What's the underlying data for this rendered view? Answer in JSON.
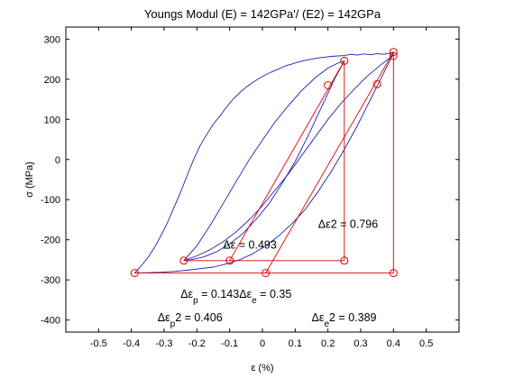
{
  "chart_data": {
    "type": "line",
    "title": "Youngs Modul (E) = 142GPa'/ (E2) = 142GPa",
    "xlabel": "ε (%)",
    "ylabel": "σ (MPa)",
    "xlim": [
      -0.6,
      0.6
    ],
    "ylim": [
      -430,
      330
    ],
    "x_ticks": [
      -0.5,
      -0.4,
      -0.3,
      -0.2,
      -0.1,
      0,
      0.1,
      0.2,
      0.3,
      0.4,
      0.5
    ],
    "y_ticks": [
      -400,
      -300,
      -200,
      -100,
      0,
      100,
      200,
      300
    ],
    "grid": false,
    "colors": {
      "curve": "#2020b0",
      "construction": "#e00000",
      "axes": "#000000"
    },
    "series": [
      {
        "x": [
          -0.39,
          -0.37,
          -0.35,
          -0.33,
          -0.31,
          -0.29,
          -0.27,
          -0.25,
          -0.23,
          -0.21,
          -0.19,
          -0.17,
          -0.15,
          -0.13,
          -0.11,
          -0.09,
          -0.07,
          -0.05,
          -0.03,
          -0.01,
          0.01,
          0.03,
          0.05,
          0.07,
          0.09,
          0.11,
          0.13,
          0.15,
          0.17,
          0.19,
          0.21,
          0.23,
          0.25,
          0.27,
          0.29,
          0.31,
          0.33,
          0.35,
          0.37,
          0.39,
          0.4
        ],
        "y": [
          -283,
          -265,
          -245,
          -220,
          -190,
          -158,
          -120,
          -82,
          -40,
          0,
          35,
          62,
          88,
          108,
          130,
          150,
          166,
          180,
          192,
          202,
          211,
          219,
          226,
          233,
          238,
          243,
          247,
          250,
          253,
          255,
          257,
          258,
          259,
          262,
          260,
          263,
          261,
          264,
          262,
          265,
          268
        ]
      },
      {
        "x": [
          -0.24,
          -0.2,
          -0.16,
          -0.12,
          -0.08,
          -0.04,
          0.0,
          0.04,
          0.08,
          0.12,
          0.16,
          0.2,
          0.23,
          0.25
        ],
        "y": [
          -252,
          -215,
          -165,
          -110,
          -55,
          0,
          48,
          95,
          135,
          172,
          203,
          228,
          240,
          246
        ]
      },
      {
        "x": [
          0.25,
          0.22,
          0.18,
          0.14,
          0.1,
          0.06,
          0.02,
          -0.02,
          -0.06,
          -0.1,
          -0.14,
          -0.18,
          -0.22,
          -0.24
        ],
        "y": [
          246,
          200,
          130,
          60,
          -5,
          -60,
          -110,
          -150,
          -185,
          -210,
          -230,
          -243,
          -250,
          -252
        ]
      },
      {
        "x": [
          -0.24,
          -0.2,
          -0.16,
          -0.12,
          -0.08,
          -0.04,
          0.0,
          0.04,
          0.08,
          0.12,
          0.16,
          0.2,
          0.24,
          0.28,
          0.32,
          0.36,
          0.38,
          0.4
        ],
        "y": [
          -252,
          -240,
          -225,
          -205,
          -180,
          -150,
          -115,
          -75,
          -35,
          10,
          55,
          100,
          140,
          175,
          208,
          235,
          248,
          260
        ]
      },
      {
        "x": [
          0.4,
          0.37,
          0.33,
          0.29,
          0.25,
          0.21,
          0.17,
          0.13,
          0.09,
          0.05,
          0.01,
          -0.03,
          -0.07,
          -0.11,
          -0.15,
          -0.19,
          -0.23,
          -0.27,
          -0.31,
          -0.35,
          -0.39
        ],
        "y": [
          265,
          215,
          150,
          85,
          25,
          -30,
          -80,
          -125,
          -160,
          -190,
          -215,
          -235,
          -250,
          -260,
          -268,
          -272,
          -276,
          -279,
          -281,
          -282,
          -283
        ]
      }
    ],
    "markers": {
      "x": [
        -0.39,
        -0.24,
        -0.1,
        0.01,
        0.25,
        0.25,
        0.2,
        0.35,
        0.4,
        0.4,
        0.4
      ],
      "y": [
        -283,
        -252,
        -252,
        -283,
        -252,
        246,
        185,
        188,
        258,
        268,
        -283
      ]
    },
    "construction_lines": [
      {
        "x": [
          -0.39,
          0.4
        ],
        "y": [
          -283,
          -283
        ]
      },
      {
        "x": [
          -0.24,
          0.25
        ],
        "y": [
          -252,
          -252
        ]
      },
      {
        "x": [
          0.25,
          0.25
        ],
        "y": [
          -252,
          246
        ]
      },
      {
        "x": [
          0.4,
          0.4
        ],
        "y": [
          -283,
          268
        ]
      },
      {
        "x": [
          -0.1,
          0.25
        ],
        "y": [
          -252,
          246
        ]
      },
      {
        "x": [
          0.01,
          0.4
        ],
        "y": [
          -283,
          268
        ]
      }
    ],
    "annotations": [
      {
        "parts": [
          "Δε2 = 0.796"
        ],
        "x": 0.17,
        "y": -170
      },
      {
        "parts": [
          "Δε = 0.493"
        ],
        "x": -0.12,
        "y": -222
      },
      {
        "parts": [
          "Δε",
          "p",
          " = 0.143Δε",
          "e",
          " = 0.35"
        ],
        "x": -0.25,
        "y": -345
      },
      {
        "parts": [
          "Δε",
          "p",
          "2 = 0.406"
        ],
        "x": -0.32,
        "y": -403
      },
      {
        "parts": [
          "Δε",
          "e",
          "2 = 0.389"
        ],
        "x": 0.15,
        "y": -403
      }
    ]
  }
}
